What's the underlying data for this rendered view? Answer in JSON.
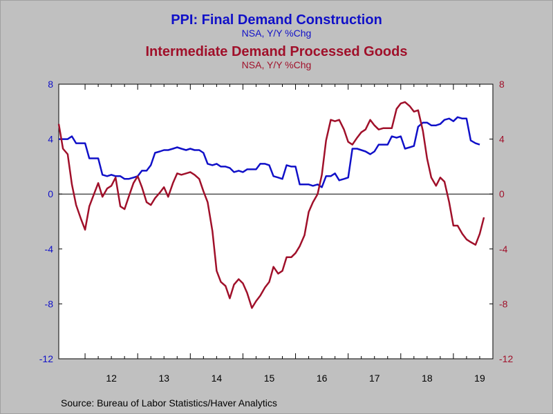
{
  "chart_data": {
    "type": "line",
    "title": "PPI: Final Demand Construction",
    "subtitle": "NSA, Y/Y %Chg",
    "title2": "Intermediate Demand Processed Goods",
    "subtitle2": "NSA, Y/Y %Chg",
    "source": "Source:  Bureau of Labor Statistics/Haver Analytics",
    "x_range": [
      2011.5,
      2019.75
    ],
    "ylim_left": [
      -12,
      8
    ],
    "ylim_right": [
      -12,
      8
    ],
    "yticks_left": [
      "8",
      "4",
      "0",
      "-4",
      "-8",
      "-12"
    ],
    "yticks_right": [
      "8",
      "4",
      "0",
      "-4",
      "-8",
      "-12"
    ],
    "ytick_values": [
      8,
      4,
      0,
      -4,
      -8,
      -12
    ],
    "xtick_labels": [
      "12",
      "13",
      "14",
      "15",
      "16",
      "17",
      "18",
      "19"
    ],
    "zero_line": true,
    "colors": {
      "background": "#c0c0c0",
      "plot_background": "#ffffff",
      "construction": "#1010c8",
      "processed_goods": "#a0102a",
      "axis": "#000000"
    },
    "series": [
      {
        "key": "construction",
        "axis": "left",
        "color": "#1010c8",
        "points": [
          [
            2011.5,
            4.0
          ],
          [
            2011.58,
            4.0
          ],
          [
            2011.67,
            4.0
          ],
          [
            2011.75,
            4.2
          ],
          [
            2011.83,
            3.7
          ],
          [
            2011.92,
            3.7
          ],
          [
            2012.0,
            3.7
          ],
          [
            2012.08,
            2.6
          ],
          [
            2012.17,
            2.6
          ],
          [
            2012.25,
            2.6
          ],
          [
            2012.33,
            1.4
          ],
          [
            2012.42,
            1.3
          ],
          [
            2012.5,
            1.4
          ],
          [
            2012.58,
            1.3
          ],
          [
            2012.67,
            1.3
          ],
          [
            2012.75,
            1.1
          ],
          [
            2012.83,
            1.1
          ],
          [
            2012.92,
            1.2
          ],
          [
            2013.0,
            1.3
          ],
          [
            2013.08,
            1.7
          ],
          [
            2013.17,
            1.7
          ],
          [
            2013.25,
            2.1
          ],
          [
            2013.33,
            3.0
          ],
          [
            2013.42,
            3.1
          ],
          [
            2013.5,
            3.2
          ],
          [
            2013.58,
            3.2
          ],
          [
            2013.67,
            3.3
          ],
          [
            2013.75,
            3.4
          ],
          [
            2013.83,
            3.3
          ],
          [
            2013.92,
            3.2
          ],
          [
            2014.0,
            3.3
          ],
          [
            2014.08,
            3.2
          ],
          [
            2014.17,
            3.2
          ],
          [
            2014.25,
            3.0
          ],
          [
            2014.33,
            2.2
          ],
          [
            2014.42,
            2.1
          ],
          [
            2014.5,
            2.2
          ],
          [
            2014.58,
            2.0
          ],
          [
            2014.67,
            2.0
          ],
          [
            2014.75,
            1.9
          ],
          [
            2014.83,
            1.6
          ],
          [
            2014.92,
            1.7
          ],
          [
            2015.0,
            1.6
          ],
          [
            2015.08,
            1.8
          ],
          [
            2015.17,
            1.8
          ],
          [
            2015.25,
            1.8
          ],
          [
            2015.33,
            2.2
          ],
          [
            2015.42,
            2.2
          ],
          [
            2015.5,
            2.1
          ],
          [
            2015.58,
            1.3
          ],
          [
            2015.67,
            1.2
          ],
          [
            2015.75,
            1.1
          ],
          [
            2015.83,
            2.1
          ],
          [
            2015.92,
            2.0
          ],
          [
            2016.0,
            2.0
          ],
          [
            2016.08,
            0.7
          ],
          [
            2016.17,
            0.7
          ],
          [
            2016.25,
            0.7
          ],
          [
            2016.33,
            0.6
          ],
          [
            2016.42,
            0.7
          ],
          [
            2016.5,
            0.5
          ],
          [
            2016.58,
            1.3
          ],
          [
            2016.67,
            1.3
          ],
          [
            2016.75,
            1.5
          ],
          [
            2016.83,
            1.0
          ],
          [
            2016.92,
            1.1
          ],
          [
            2017.0,
            1.2
          ],
          [
            2017.08,
            3.3
          ],
          [
            2017.17,
            3.3
          ],
          [
            2017.25,
            3.2
          ],
          [
            2017.33,
            3.1
          ],
          [
            2017.42,
            2.9
          ],
          [
            2017.5,
            3.1
          ],
          [
            2017.58,
            3.6
          ],
          [
            2017.67,
            3.6
          ],
          [
            2017.75,
            3.6
          ],
          [
            2017.83,
            4.2
          ],
          [
            2017.92,
            4.1
          ],
          [
            2018.0,
            4.2
          ],
          [
            2018.08,
            3.3
          ],
          [
            2018.17,
            3.4
          ],
          [
            2018.25,
            3.5
          ],
          [
            2018.33,
            4.9
          ],
          [
            2018.42,
            5.2
          ],
          [
            2018.5,
            5.2
          ],
          [
            2018.58,
            5.0
          ],
          [
            2018.67,
            5.0
          ],
          [
            2018.75,
            5.1
          ],
          [
            2018.83,
            5.4
          ],
          [
            2018.92,
            5.5
          ],
          [
            2019.0,
            5.3
          ],
          [
            2019.08,
            5.6
          ],
          [
            2019.17,
            5.5
          ],
          [
            2019.25,
            5.5
          ],
          [
            2019.33,
            3.9
          ],
          [
            2019.42,
            3.7
          ],
          [
            2019.5,
            3.6
          ]
        ]
      },
      {
        "key": "processed_goods",
        "axis": "right",
        "color": "#a0102a",
        "points": [
          [
            2011.5,
            5.1
          ],
          [
            2011.58,
            3.3
          ],
          [
            2011.67,
            2.9
          ],
          [
            2011.75,
            0.7
          ],
          [
            2011.83,
            -0.8
          ],
          [
            2011.92,
            -1.8
          ],
          [
            2012.0,
            -2.6
          ],
          [
            2012.08,
            -0.9
          ],
          [
            2012.17,
            0.0
          ],
          [
            2012.25,
            0.8
          ],
          [
            2012.33,
            -0.2
          ],
          [
            2012.42,
            0.4
          ],
          [
            2012.5,
            0.6
          ],
          [
            2012.58,
            1.2
          ],
          [
            2012.67,
            -0.9
          ],
          [
            2012.75,
            -1.1
          ],
          [
            2012.83,
            -0.2
          ],
          [
            2012.92,
            0.8
          ],
          [
            2013.0,
            1.3
          ],
          [
            2013.08,
            0.5
          ],
          [
            2013.17,
            -0.6
          ],
          [
            2013.25,
            -0.8
          ],
          [
            2013.33,
            -0.3
          ],
          [
            2013.42,
            0.1
          ],
          [
            2013.5,
            0.5
          ],
          [
            2013.58,
            -0.2
          ],
          [
            2013.67,
            0.8
          ],
          [
            2013.75,
            1.5
          ],
          [
            2013.83,
            1.4
          ],
          [
            2013.92,
            1.5
          ],
          [
            2014.0,
            1.6
          ],
          [
            2014.08,
            1.4
          ],
          [
            2014.17,
            1.1
          ],
          [
            2014.25,
            0.2
          ],
          [
            2014.33,
            -0.6
          ],
          [
            2014.42,
            -2.7
          ],
          [
            2014.5,
            -5.6
          ],
          [
            2014.58,
            -6.4
          ],
          [
            2014.67,
            -6.7
          ],
          [
            2014.75,
            -7.6
          ],
          [
            2014.83,
            -6.6
          ],
          [
            2014.92,
            -6.2
          ],
          [
            2015.0,
            -6.5
          ],
          [
            2015.08,
            -7.2
          ],
          [
            2015.17,
            -8.3
          ],
          [
            2015.25,
            -7.8
          ],
          [
            2015.33,
            -7.4
          ],
          [
            2015.42,
            -6.8
          ],
          [
            2015.5,
            -6.4
          ],
          [
            2015.58,
            -5.3
          ],
          [
            2015.67,
            -5.8
          ],
          [
            2015.75,
            -5.6
          ],
          [
            2015.83,
            -4.6
          ],
          [
            2015.92,
            -4.6
          ],
          [
            2016.0,
            -4.3
          ],
          [
            2016.08,
            -3.8
          ],
          [
            2016.17,
            -3.0
          ],
          [
            2016.25,
            -1.3
          ],
          [
            2016.33,
            -0.6
          ],
          [
            2016.42,
            0.0
          ],
          [
            2016.5,
            1.4
          ],
          [
            2016.58,
            3.9
          ],
          [
            2016.67,
            5.4
          ],
          [
            2016.75,
            5.3
          ],
          [
            2016.83,
            5.4
          ],
          [
            2016.92,
            4.7
          ],
          [
            2017.0,
            3.8
          ],
          [
            2017.08,
            3.6
          ],
          [
            2017.17,
            4.1
          ],
          [
            2017.25,
            4.5
          ],
          [
            2017.33,
            4.7
          ],
          [
            2017.42,
            5.4
          ],
          [
            2017.5,
            5.0
          ],
          [
            2017.58,
            4.7
          ],
          [
            2017.67,
            4.8
          ],
          [
            2017.75,
            4.8
          ],
          [
            2017.83,
            4.8
          ],
          [
            2017.92,
            6.2
          ],
          [
            2018.0,
            6.6
          ],
          [
            2018.08,
            6.7
          ],
          [
            2018.17,
            6.4
          ],
          [
            2018.25,
            6.0
          ],
          [
            2018.33,
            6.1
          ],
          [
            2018.42,
            4.6
          ],
          [
            2018.5,
            2.6
          ],
          [
            2018.58,
            1.2
          ],
          [
            2018.67,
            0.6
          ],
          [
            2018.75,
            1.2
          ],
          [
            2018.83,
            0.9
          ],
          [
            2018.92,
            -0.6
          ],
          [
            2019.0,
            -2.3
          ],
          [
            2019.08,
            -2.3
          ],
          [
            2019.17,
            -2.9
          ],
          [
            2019.25,
            -3.3
          ],
          [
            2019.33,
            -3.5
          ],
          [
            2019.42,
            -3.7
          ],
          [
            2019.5,
            -2.9
          ],
          [
            2019.58,
            -1.7
          ]
        ]
      }
    ]
  }
}
